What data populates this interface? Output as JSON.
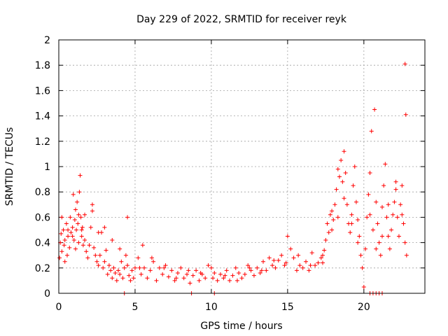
{
  "chart_data": {
    "type": "scatter",
    "title": "Day 229 of 2022, SRMTID for receiver reyk",
    "xlabel": "GPS time / hours",
    "ylabel": "SRMTID / TECUs",
    "xlim": [
      0,
      24
    ],
    "ylim": [
      0,
      2
    ],
    "x_ticks": [
      0,
      5,
      10,
      15,
      20
    ],
    "x_tick_labels": [
      "0",
      "5",
      "10",
      "15",
      "20"
    ],
    "y_ticks": [
      0,
      0.2,
      0.4,
      0.6,
      0.8,
      1,
      1.2,
      1.4,
      1.6,
      1.8,
      2
    ],
    "y_tick_labels": [
      "0",
      "0.2",
      "0.4",
      "0.6",
      "0.8",
      "1",
      "1.2",
      "1.4",
      "1.6",
      "1.8",
      "2"
    ],
    "grid": true,
    "marker": "+",
    "series": [
      {
        "name": "SRMTID",
        "color": "#ff0000",
        "x": [
          0.05,
          0.1,
          0.15,
          0.2,
          0.3,
          0.35,
          0.4,
          0.5,
          0.55,
          0.6,
          0.7,
          0.75,
          0.8,
          0.9,
          0.95,
          1.0,
          1.05,
          1.1,
          1.15,
          1.2,
          1.25,
          1.3,
          1.35,
          1.4,
          1.45,
          1.5,
          1.55,
          1.6,
          1.7,
          1.8,
          1.9,
          2.0,
          2.1,
          2.2,
          2.3,
          2.4,
          2.5,
          2.6,
          2.7,
          2.8,
          2.9,
          3.0,
          3.1,
          3.2,
          3.3,
          3.4,
          3.5,
          3.6,
          3.7,
          3.8,
          3.9,
          4.0,
          4.1,
          4.2,
          4.3,
          4.4,
          4.5,
          4.6,
          4.7,
          4.8,
          4.9,
          5.0,
          5.2,
          5.4,
          5.5,
          5.6,
          5.8,
          6.0,
          6.2,
          6.4,
          6.6,
          6.8,
          7.0,
          7.2,
          7.4,
          7.6,
          7.8,
          8.0,
          8.2,
          8.4,
          8.6,
          8.8,
          9.0,
          9.2,
          9.4,
          9.6,
          9.8,
          10.0,
          10.2,
          10.4,
          10.6,
          10.8,
          11.0,
          11.2,
          11.4,
          11.6,
          11.8,
          12.0,
          12.2,
          12.4,
          12.6,
          12.8,
          13.0,
          13.2,
          13.4,
          13.6,
          13.8,
          14.0,
          14.2,
          14.4,
          14.6,
          14.8,
          15.0,
          15.2,
          15.4,
          15.6,
          15.8,
          16.0,
          16.2,
          16.4,
          16.6,
          16.8,
          17.0,
          17.2,
          17.3,
          17.4,
          17.5,
          17.6,
          17.7,
          17.8,
          17.9,
          18.0,
          18.1,
          18.2,
          18.3,
          18.4,
          18.5,
          18.6,
          18.7,
          18.8,
          18.9,
          19.0,
          19.1,
          19.2,
          19.3,
          19.4,
          19.5,
          19.6,
          19.7,
          19.8,
          19.9,
          20.0,
          20.1,
          20.2,
          20.3,
          20.4,
          20.5,
          20.6,
          20.7,
          20.8,
          20.9,
          21.0,
          21.1,
          21.2,
          21.3,
          21.4,
          21.5,
          21.6,
          21.7,
          21.8,
          21.9,
          22.0,
          22.1,
          22.2,
          22.3,
          22.4,
          22.5,
          22.6,
          22.7,
          22.8,
          0.2,
          0.4,
          0.6,
          0.9,
          1.1,
          1.3,
          1.5,
          1.7,
          2.2,
          2.6,
          3.0,
          3.5,
          4.0,
          4.5,
          5.3,
          6.1,
          6.9,
          7.7,
          8.5,
          9.3,
          10.1,
          10.9,
          11.7,
          12.5,
          13.3,
          14.1,
          14.9,
          15.7,
          16.5,
          17.3,
          17.9,
          18.3,
          18.7,
          19.2,
          19.6,
          20.4,
          20.8,
          21.2,
          21.6,
          22.1,
          22.5,
          22.7,
          22.75,
          4.3,
          8.7,
          10.2,
          20.4,
          20.6,
          20.8,
          21.0,
          21.2
        ],
        "y": [
          0.28,
          0.4,
          0.47,
          0.33,
          0.5,
          0.38,
          0.42,
          0.55,
          0.3,
          0.45,
          0.36,
          0.6,
          0.48,
          0.52,
          0.78,
          0.42,
          0.58,
          0.66,
          0.5,
          0.72,
          0.55,
          0.62,
          0.8,
          0.93,
          0.6,
          0.45,
          0.52,
          0.38,
          0.42,
          0.33,
          0.28,
          0.38,
          0.52,
          0.65,
          0.36,
          0.3,
          0.25,
          0.22,
          0.3,
          0.48,
          0.2,
          0.25,
          0.34,
          0.15,
          0.22,
          0.18,
          0.12,
          0.2,
          0.16,
          0.1,
          0.18,
          0.15,
          0.25,
          0.12,
          0.2,
          0.3,
          0.22,
          0.14,
          0.1,
          0.18,
          0.12,
          0.2,
          0.28,
          0.15,
          0.38,
          0.2,
          0.12,
          0.18,
          0.25,
          0.1,
          0.2,
          0.15,
          0.22,
          0.13,
          0.18,
          0.1,
          0.16,
          0.2,
          0.12,
          0.15,
          0.08,
          0.14,
          0.18,
          0.1,
          0.15,
          0.12,
          0.22,
          0.2,
          0.16,
          0.1,
          0.15,
          0.12,
          0.18,
          0.1,
          0.14,
          0.2,
          0.16,
          0.12,
          0.15,
          0.22,
          0.18,
          0.14,
          0.2,
          0.16,
          0.25,
          0.18,
          0.28,
          0.22,
          0.2,
          0.26,
          0.3,
          0.22,
          0.45,
          0.35,
          0.28,
          0.18,
          0.22,
          0.2,
          0.25,
          0.18,
          0.32,
          0.22,
          0.24,
          0.28,
          0.3,
          0.34,
          0.42,
          0.55,
          0.48,
          0.62,
          0.5,
          0.58,
          0.7,
          0.82,
          0.6,
          0.92,
          1.05,
          0.88,
          1.12,
          0.95,
          0.7,
          0.55,
          0.48,
          0.62,
          0.85,
          1.0,
          0.72,
          0.58,
          0.45,
          0.3,
          0.2,
          0.05,
          0.35,
          0.6,
          0.78,
          0.95,
          1.28,
          0.5,
          1.45,
          0.72,
          0.55,
          0.4,
          0.3,
          0.68,
          0.85,
          1.02,
          0.6,
          0.45,
          0.35,
          0.5,
          0.62,
          0.72,
          0.88,
          0.6,
          0.45,
          0.7,
          0.85,
          0.55,
          0.4,
          0.3,
          0.6,
          0.25,
          0.5,
          0.45,
          0.35,
          0.4,
          0.5,
          0.62,
          0.7,
          0.48,
          0.52,
          0.42,
          0.35,
          0.6,
          0.2,
          0.28,
          0.2,
          0.12,
          0.18,
          0.16,
          0.12,
          0.14,
          0.1,
          0.2,
          0.18,
          0.26,
          0.24,
          0.3,
          0.22,
          0.24,
          0.65,
          0.98,
          0.75,
          0.55,
          0.4,
          0.62,
          0.35,
          0.45,
          0.7,
          0.82,
          0.62,
          1.81,
          1.41,
          0.0,
          0.0,
          0.0,
          0.0,
          0.0,
          0.0,
          0.0,
          0.0
        ]
      }
    ]
  }
}
